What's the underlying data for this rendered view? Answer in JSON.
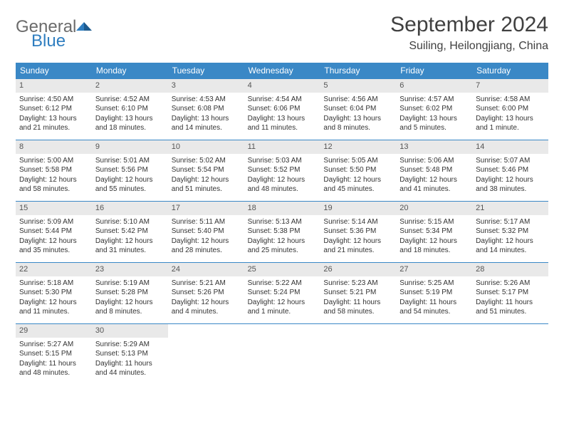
{
  "logo": {
    "general": "General",
    "blue": "Blue"
  },
  "title": "September 2024",
  "location": "Suiling, Heilongjiang, China",
  "colors": {
    "header_bg": "#3a88c6",
    "header_text": "#ffffff",
    "daynum_bg": "#e9e9e9",
    "cell_border": "#3a88c6",
    "logo_gray": "#6b6b6b",
    "logo_blue": "#2f7ec0",
    "body_text": "#333333",
    "title_text": "#404040"
  },
  "day_headers": [
    "Sunday",
    "Monday",
    "Tuesday",
    "Wednesday",
    "Thursday",
    "Friday",
    "Saturday"
  ],
  "days": [
    {
      "n": "1",
      "sunrise": "Sunrise: 4:50 AM",
      "sunset": "Sunset: 6:12 PM",
      "daylight": "Daylight: 13 hours and 21 minutes."
    },
    {
      "n": "2",
      "sunrise": "Sunrise: 4:52 AM",
      "sunset": "Sunset: 6:10 PM",
      "daylight": "Daylight: 13 hours and 18 minutes."
    },
    {
      "n": "3",
      "sunrise": "Sunrise: 4:53 AM",
      "sunset": "Sunset: 6:08 PM",
      "daylight": "Daylight: 13 hours and 14 minutes."
    },
    {
      "n": "4",
      "sunrise": "Sunrise: 4:54 AM",
      "sunset": "Sunset: 6:06 PM",
      "daylight": "Daylight: 13 hours and 11 minutes."
    },
    {
      "n": "5",
      "sunrise": "Sunrise: 4:56 AM",
      "sunset": "Sunset: 6:04 PM",
      "daylight": "Daylight: 13 hours and 8 minutes."
    },
    {
      "n": "6",
      "sunrise": "Sunrise: 4:57 AM",
      "sunset": "Sunset: 6:02 PM",
      "daylight": "Daylight: 13 hours and 5 minutes."
    },
    {
      "n": "7",
      "sunrise": "Sunrise: 4:58 AM",
      "sunset": "Sunset: 6:00 PM",
      "daylight": "Daylight: 13 hours and 1 minute."
    },
    {
      "n": "8",
      "sunrise": "Sunrise: 5:00 AM",
      "sunset": "Sunset: 5:58 PM",
      "daylight": "Daylight: 12 hours and 58 minutes."
    },
    {
      "n": "9",
      "sunrise": "Sunrise: 5:01 AM",
      "sunset": "Sunset: 5:56 PM",
      "daylight": "Daylight: 12 hours and 55 minutes."
    },
    {
      "n": "10",
      "sunrise": "Sunrise: 5:02 AM",
      "sunset": "Sunset: 5:54 PM",
      "daylight": "Daylight: 12 hours and 51 minutes."
    },
    {
      "n": "11",
      "sunrise": "Sunrise: 5:03 AM",
      "sunset": "Sunset: 5:52 PM",
      "daylight": "Daylight: 12 hours and 48 minutes."
    },
    {
      "n": "12",
      "sunrise": "Sunrise: 5:05 AM",
      "sunset": "Sunset: 5:50 PM",
      "daylight": "Daylight: 12 hours and 45 minutes."
    },
    {
      "n": "13",
      "sunrise": "Sunrise: 5:06 AM",
      "sunset": "Sunset: 5:48 PM",
      "daylight": "Daylight: 12 hours and 41 minutes."
    },
    {
      "n": "14",
      "sunrise": "Sunrise: 5:07 AM",
      "sunset": "Sunset: 5:46 PM",
      "daylight": "Daylight: 12 hours and 38 minutes."
    },
    {
      "n": "15",
      "sunrise": "Sunrise: 5:09 AM",
      "sunset": "Sunset: 5:44 PM",
      "daylight": "Daylight: 12 hours and 35 minutes."
    },
    {
      "n": "16",
      "sunrise": "Sunrise: 5:10 AM",
      "sunset": "Sunset: 5:42 PM",
      "daylight": "Daylight: 12 hours and 31 minutes."
    },
    {
      "n": "17",
      "sunrise": "Sunrise: 5:11 AM",
      "sunset": "Sunset: 5:40 PM",
      "daylight": "Daylight: 12 hours and 28 minutes."
    },
    {
      "n": "18",
      "sunrise": "Sunrise: 5:13 AM",
      "sunset": "Sunset: 5:38 PM",
      "daylight": "Daylight: 12 hours and 25 minutes."
    },
    {
      "n": "19",
      "sunrise": "Sunrise: 5:14 AM",
      "sunset": "Sunset: 5:36 PM",
      "daylight": "Daylight: 12 hours and 21 minutes."
    },
    {
      "n": "20",
      "sunrise": "Sunrise: 5:15 AM",
      "sunset": "Sunset: 5:34 PM",
      "daylight": "Daylight: 12 hours and 18 minutes."
    },
    {
      "n": "21",
      "sunrise": "Sunrise: 5:17 AM",
      "sunset": "Sunset: 5:32 PM",
      "daylight": "Daylight: 12 hours and 14 minutes."
    },
    {
      "n": "22",
      "sunrise": "Sunrise: 5:18 AM",
      "sunset": "Sunset: 5:30 PM",
      "daylight": "Daylight: 12 hours and 11 minutes."
    },
    {
      "n": "23",
      "sunrise": "Sunrise: 5:19 AM",
      "sunset": "Sunset: 5:28 PM",
      "daylight": "Daylight: 12 hours and 8 minutes."
    },
    {
      "n": "24",
      "sunrise": "Sunrise: 5:21 AM",
      "sunset": "Sunset: 5:26 PM",
      "daylight": "Daylight: 12 hours and 4 minutes."
    },
    {
      "n": "25",
      "sunrise": "Sunrise: 5:22 AM",
      "sunset": "Sunset: 5:24 PM",
      "daylight": "Daylight: 12 hours and 1 minute."
    },
    {
      "n": "26",
      "sunrise": "Sunrise: 5:23 AM",
      "sunset": "Sunset: 5:21 PM",
      "daylight": "Daylight: 11 hours and 58 minutes."
    },
    {
      "n": "27",
      "sunrise": "Sunrise: 5:25 AM",
      "sunset": "Sunset: 5:19 PM",
      "daylight": "Daylight: 11 hours and 54 minutes."
    },
    {
      "n": "28",
      "sunrise": "Sunrise: 5:26 AM",
      "sunset": "Sunset: 5:17 PM",
      "daylight": "Daylight: 11 hours and 51 minutes."
    },
    {
      "n": "29",
      "sunrise": "Sunrise: 5:27 AM",
      "sunset": "Sunset: 5:15 PM",
      "daylight": "Daylight: 11 hours and 48 minutes."
    },
    {
      "n": "30",
      "sunrise": "Sunrise: 5:29 AM",
      "sunset": "Sunset: 5:13 PM",
      "daylight": "Daylight: 11 hours and 44 minutes."
    }
  ]
}
